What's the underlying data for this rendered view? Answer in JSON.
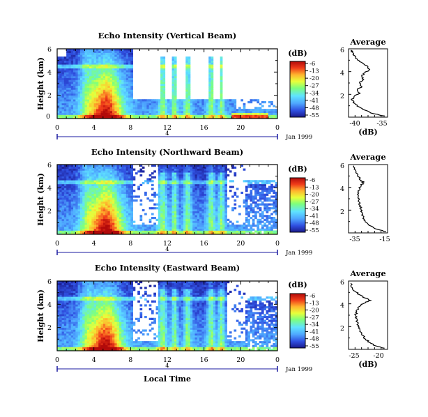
{
  "chart_data": [
    {
      "type": "heatmap",
      "title": "Echo Intensity (Vertical Beam)",
      "ylabel": "Height (km)",
      "y_ticks": [
        "2",
        "4",
        "6"
      ],
      "x_ticks": [
        "0",
        "4",
        "8",
        "12",
        "16",
        "20",
        "0"
      ],
      "date_marker": "4",
      "date_label": "Jan 1999",
      "xlim": [
        0,
        24
      ],
      "ylim": [
        0,
        6
      ],
      "colorbar": {
        "label": "(dB)",
        "ticks": [
          "-6",
          "-13",
          "-20",
          "-27",
          "-34",
          "-41",
          "-48",
          "-55"
        ],
        "range": [
          -55,
          -6
        ],
        "colors": [
          "#1a1a8c",
          "#2f4fe0",
          "#4fa8ff",
          "#5fe3ff",
          "#7dff7d",
          "#e8ff3a",
          "#ffb52e",
          "#f03c1a",
          "#b20a0a"
        ]
      },
      "profile": {
        "title": "Average",
        "xlabel": "(dB)",
        "x_ticks": [
          "-40",
          "-35"
        ],
        "xlim": [
          -41.5,
          -33
        ],
        "y_ticks": [
          "2",
          "4",
          "6"
        ],
        "ylim": [
          0,
          6
        ],
        "height_km": [
          0.1,
          0.3,
          0.6,
          0.9,
          1.2,
          1.5,
          1.8,
          2.1,
          2.4,
          2.7,
          3.0,
          3.3,
          3.6,
          3.9,
          4.2,
          4.5,
          4.8,
          5.1,
          5.4,
          5.7,
          5.9
        ],
        "db": [
          -33.6,
          -36.0,
          -37.8,
          -39.2,
          -40.1,
          -40.8,
          -40.3,
          -39.0,
          -39.6,
          -38.6,
          -39.1,
          -38.2,
          -38.6,
          -37.9,
          -36.9,
          -37.4,
          -38.6,
          -39.6,
          -40.2,
          -40.6,
          -40.9
        ]
      }
    },
    {
      "type": "heatmap",
      "title": "Echo Intensity (Northward Beam)",
      "ylabel": "Height (km)",
      "y_ticks": [
        "2",
        "4",
        "6"
      ],
      "x_ticks": [
        "0",
        "4",
        "8",
        "12",
        "16",
        "20",
        "0"
      ],
      "date_marker": "4",
      "date_label": "Jan 1999",
      "xlim": [
        0,
        24
      ],
      "ylim": [
        0,
        6
      ],
      "colorbar": {
        "label": "(dB)",
        "ticks": [
          "-6",
          "-13",
          "-20",
          "-27",
          "-34",
          "-41",
          "-48",
          "-55"
        ],
        "range": [
          -55,
          -6
        ],
        "colors": [
          "#1a1a8c",
          "#2f4fe0",
          "#4fa8ff",
          "#5fe3ff",
          "#7dff7d",
          "#e8ff3a",
          "#ffb52e",
          "#f03c1a",
          "#b20a0a"
        ]
      },
      "profile": {
        "title": "Average",
        "xlabel": "(dB)",
        "x_ticks": [
          "-35",
          "-15"
        ],
        "xlim": [
          -40,
          -14
        ],
        "y_ticks": [
          "2",
          "4",
          "6"
        ],
        "ylim": [
          0,
          6
        ],
        "height_km": [
          0.1,
          0.3,
          0.6,
          0.9,
          1.2,
          1.5,
          1.8,
          2.1,
          2.4,
          2.7,
          3.0,
          3.3,
          3.6,
          3.9,
          4.2,
          4.4,
          4.6,
          4.9,
          5.2,
          5.5,
          5.9
        ],
        "db": [
          -15.0,
          -20.5,
          -25.0,
          -27.8,
          -29.5,
          -30.4,
          -31.0,
          -31.6,
          -32.2,
          -32.8,
          -33.0,
          -33.4,
          -33.2,
          -32.6,
          -31.5,
          -29.8,
          -31.6,
          -33.0,
          -34.2,
          -35.2,
          -36.5
        ]
      }
    },
    {
      "type": "heatmap",
      "title": "Echo Intensity (Eastward Beam)",
      "ylabel": "Height (km)",
      "y_ticks": [
        "2",
        "4",
        "6"
      ],
      "x_ticks": [
        "0",
        "4",
        "8",
        "12",
        "16",
        "20",
        "0"
      ],
      "date_marker": "4",
      "date_label": "Jan 1999",
      "xlabel": "Local Time",
      "xlim": [
        0,
        24
      ],
      "ylim": [
        0,
        6
      ],
      "colorbar": {
        "label": "(dB)",
        "ticks": [
          "-6",
          "-13",
          "-20",
          "-27",
          "-34",
          "-41",
          "-48",
          "-55"
        ],
        "range": [
          -55,
          -6
        ],
        "colors": [
          "#1a1a8c",
          "#2f4fe0",
          "#4fa8ff",
          "#5fe3ff",
          "#7dff7d",
          "#e8ff3a",
          "#ffb52e",
          "#f03c1a",
          "#b20a0a"
        ]
      },
      "profile": {
        "title": "Average",
        "xlabel": "(dB)",
        "x_ticks": [
          "-25",
          "-20"
        ],
        "xlim": [
          -27.5,
          -18.5
        ],
        "y_ticks": [
          "2",
          "4",
          "6"
        ],
        "ylim": [
          0,
          6
        ],
        "height_km": [
          0.1,
          0.3,
          0.6,
          0.9,
          1.2,
          1.5,
          1.8,
          2.1,
          2.4,
          2.7,
          3.0,
          3.3,
          3.6,
          3.9,
          4.1,
          4.3,
          4.5,
          4.8,
          5.1,
          5.4,
          5.8
        ],
        "db": [
          -19.2,
          -21.2,
          -22.6,
          -23.6,
          -24.1,
          -24.6,
          -24.9,
          -25.2,
          -25.5,
          -25.6,
          -25.9,
          -25.6,
          -25.3,
          -24.6,
          -23.6,
          -22.4,
          -23.6,
          -25.0,
          -26.0,
          -26.6,
          -27.0
        ]
      }
    }
  ]
}
